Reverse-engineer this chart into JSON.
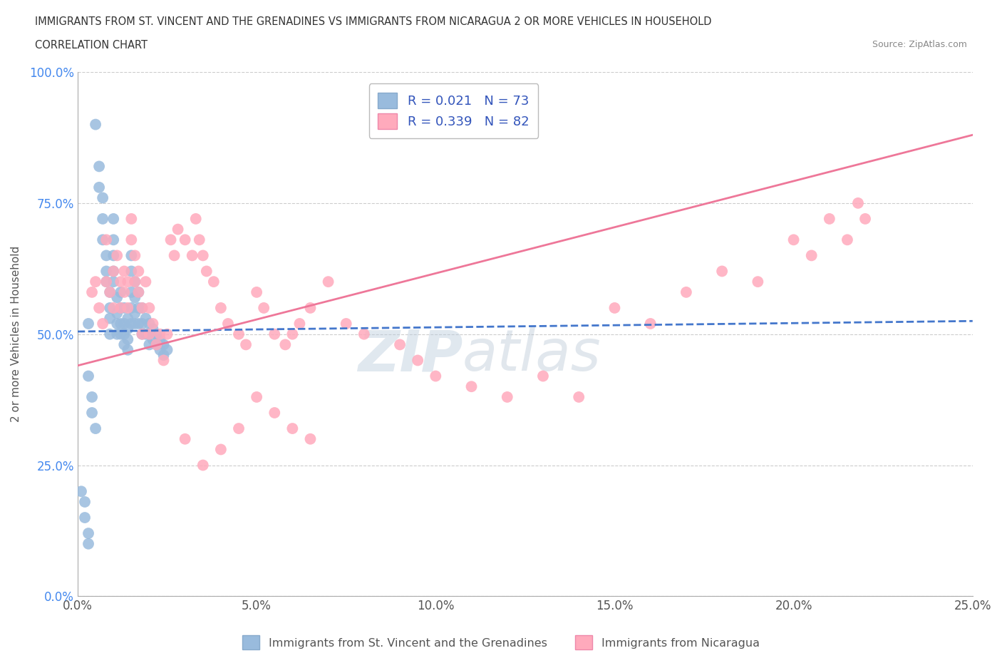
{
  "title_line1": "IMMIGRANTS FROM ST. VINCENT AND THE GRENADINES VS IMMIGRANTS FROM NICARAGUA 2 OR MORE VEHICLES IN HOUSEHOLD",
  "title_line2": "CORRELATION CHART",
  "source_text": "Source: ZipAtlas.com",
  "ylabel": "2 or more Vehicles in Household",
  "xmin": 0.0,
  "xmax": 0.25,
  "ymin": 0.0,
  "ymax": 1.0,
  "xtick_labels": [
    "0.0%",
    "5.0%",
    "10.0%",
    "15.0%",
    "20.0%",
    "25.0%"
  ],
  "xtick_vals": [
    0.0,
    0.05,
    0.1,
    0.15,
    0.2,
    0.25
  ],
  "ytick_labels": [
    "0.0%",
    "25.0%",
    "50.0%",
    "75.0%",
    "100.0%"
  ],
  "ytick_vals": [
    0.0,
    0.25,
    0.5,
    0.75,
    1.0
  ],
  "blue_R": 0.021,
  "blue_N": 73,
  "pink_R": 0.339,
  "pink_N": 82,
  "blue_color": "#99BBDD",
  "pink_color": "#FFAABC",
  "blue_line_color": "#4477CC",
  "pink_line_color": "#EE7799",
  "legend_label_blue": "Immigrants from St. Vincent and the Grenadines",
  "legend_label_pink": "Immigrants from Nicaragua",
  "watermark": "ZIPatlas",
  "blue_trend": [
    0.0,
    0.25,
    0.505,
    0.525
  ],
  "pink_trend": [
    0.0,
    0.25,
    0.44,
    0.88
  ],
  "blue_x": [
    0.003,
    0.005,
    0.006,
    0.006,
    0.007,
    0.007,
    0.007,
    0.008,
    0.008,
    0.008,
    0.009,
    0.009,
    0.009,
    0.009,
    0.01,
    0.01,
    0.01,
    0.01,
    0.01,
    0.011,
    0.011,
    0.011,
    0.011,
    0.012,
    0.012,
    0.012,
    0.012,
    0.013,
    0.013,
    0.013,
    0.013,
    0.014,
    0.014,
    0.014,
    0.014,
    0.015,
    0.015,
    0.015,
    0.015,
    0.015,
    0.016,
    0.016,
    0.016,
    0.016,
    0.017,
    0.017,
    0.017,
    0.018,
    0.018,
    0.018,
    0.019,
    0.019,
    0.02,
    0.02,
    0.02,
    0.021,
    0.021,
    0.022,
    0.022,
    0.023,
    0.023,
    0.024,
    0.024,
    0.025,
    0.003,
    0.004,
    0.004,
    0.005,
    0.001,
    0.002,
    0.002,
    0.003,
    0.003
  ],
  "blue_y": [
    0.52,
    0.9,
    0.82,
    0.78,
    0.76,
    0.72,
    0.68,
    0.65,
    0.62,
    0.6,
    0.58,
    0.55,
    0.53,
    0.5,
    0.72,
    0.68,
    0.65,
    0.62,
    0.6,
    0.57,
    0.54,
    0.52,
    0.5,
    0.58,
    0.55,
    0.52,
    0.5,
    0.55,
    0.52,
    0.5,
    0.48,
    0.53,
    0.51,
    0.49,
    0.47,
    0.65,
    0.62,
    0.58,
    0.55,
    0.52,
    0.6,
    0.57,
    0.54,
    0.52,
    0.58,
    0.55,
    0.52,
    0.55,
    0.52,
    0.5,
    0.53,
    0.5,
    0.52,
    0.5,
    0.48,
    0.51,
    0.49,
    0.5,
    0.48,
    0.49,
    0.47,
    0.48,
    0.46,
    0.47,
    0.42,
    0.38,
    0.35,
    0.32,
    0.2,
    0.18,
    0.15,
    0.12,
    0.1
  ],
  "pink_x": [
    0.004,
    0.005,
    0.006,
    0.007,
    0.008,
    0.008,
    0.009,
    0.01,
    0.01,
    0.011,
    0.012,
    0.012,
    0.013,
    0.013,
    0.014,
    0.014,
    0.015,
    0.015,
    0.016,
    0.016,
    0.017,
    0.017,
    0.018,
    0.018,
    0.019,
    0.02,
    0.02,
    0.021,
    0.022,
    0.023,
    0.024,
    0.025,
    0.026,
    0.027,
    0.028,
    0.03,
    0.032,
    0.033,
    0.034,
    0.035,
    0.036,
    0.038,
    0.04,
    0.042,
    0.045,
    0.047,
    0.05,
    0.052,
    0.055,
    0.058,
    0.06,
    0.062,
    0.065,
    0.07,
    0.075,
    0.08,
    0.09,
    0.095,
    0.1,
    0.11,
    0.12,
    0.13,
    0.14,
    0.15,
    0.16,
    0.17,
    0.18,
    0.19,
    0.2,
    0.205,
    0.21,
    0.215,
    0.218,
    0.22,
    0.05,
    0.055,
    0.06,
    0.065,
    0.045,
    0.04,
    0.035,
    0.03
  ],
  "pink_y": [
    0.58,
    0.6,
    0.55,
    0.52,
    0.68,
    0.6,
    0.58,
    0.55,
    0.62,
    0.65,
    0.6,
    0.55,
    0.62,
    0.58,
    0.6,
    0.55,
    0.72,
    0.68,
    0.65,
    0.6,
    0.62,
    0.58,
    0.55,
    0.5,
    0.6,
    0.55,
    0.5,
    0.52,
    0.48,
    0.5,
    0.45,
    0.5,
    0.68,
    0.65,
    0.7,
    0.68,
    0.65,
    0.72,
    0.68,
    0.65,
    0.62,
    0.6,
    0.55,
    0.52,
    0.5,
    0.48,
    0.58,
    0.55,
    0.5,
    0.48,
    0.5,
    0.52,
    0.55,
    0.6,
    0.52,
    0.5,
    0.48,
    0.45,
    0.42,
    0.4,
    0.38,
    0.42,
    0.38,
    0.55,
    0.52,
    0.58,
    0.62,
    0.6,
    0.68,
    0.65,
    0.72,
    0.68,
    0.75,
    0.72,
    0.38,
    0.35,
    0.32,
    0.3,
    0.32,
    0.28,
    0.25,
    0.3
  ]
}
